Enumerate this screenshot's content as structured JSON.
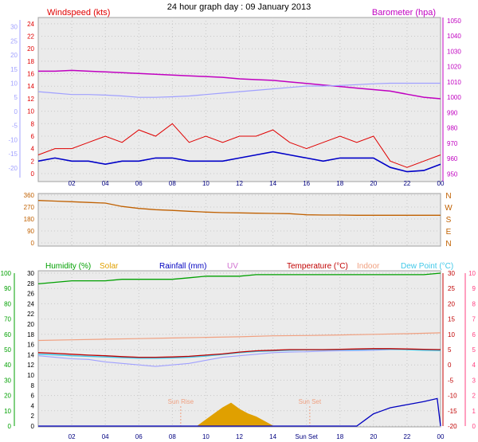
{
  "title": "24 hour graph day : 09 January 2013",
  "colors": {
    "wind": "#e00000",
    "gust_avg": "#0000c8",
    "temp_axis": "#a0a0ff",
    "baro": "#c000c0",
    "dir": "#c06000",
    "humidity": "#00a000",
    "solar": "#e0a000",
    "rain": "#0000c0",
    "uv": "#d070d0",
    "temperature": "#c00000",
    "indoor": "#f0a080",
    "dewpoint": "#40c8e8",
    "wchill": "#a0a0ff",
    "axis_pink": "#ff4080"
  },
  "chart_data": [
    {
      "type": "line",
      "x_ticks": [
        "02",
        "04",
        "06",
        "08",
        "10",
        "12",
        "14",
        "16",
        "18",
        "20",
        "22",
        "00"
      ],
      "left_label": "Windspeed (kts)",
      "right_label": "Barometer (hpa)",
      "left_ticks": [
        "24",
        "22",
        "20",
        "18",
        "16",
        "14",
        "12",
        "10",
        "8",
        "6",
        "4",
        "2",
        "0"
      ],
      "right_ticks": [
        "1050",
        "1040",
        "1030",
        "1020",
        "1010",
        "1000",
        "990",
        "980",
        "970",
        "960",
        "950"
      ],
      "outer_ticks": [
        "30",
        "25",
        "20",
        "15",
        "10",
        "5",
        "0",
        "-5",
        "-10",
        "-15",
        "-20"
      ],
      "ylim_wind": [
        0,
        25
      ],
      "ylim_baro": [
        945,
        1052
      ],
      "ylim_outer": [
        -22,
        31
      ],
      "series": [
        {
          "key": "barometer",
          "x": [
            0,
            1,
            2,
            3,
            4,
            5,
            6,
            7,
            8,
            9,
            10,
            11,
            12,
            13,
            14,
            15,
            16,
            17,
            18,
            19,
            20,
            21,
            22,
            23,
            24
          ],
          "values": [
            1017,
            1017,
            1017.5,
            1017,
            1016.5,
            1016,
            1015.5,
            1015,
            1014.5,
            1014,
            1013.5,
            1013,
            1012,
            1011.5,
            1011,
            1010,
            1009,
            1008,
            1007,
            1006,
            1005,
            1004,
            1002,
            1000,
            999
          ]
        },
        {
          "key": "outer_temp",
          "x": [
            0,
            1,
            2,
            3,
            4,
            5,
            6,
            7,
            8,
            9,
            10,
            11,
            12,
            13,
            14,
            15,
            16,
            17,
            18,
            19,
            20,
            21,
            22,
            23,
            24
          ],
          "values": [
            7,
            6.5,
            6,
            6,
            5.8,
            5.5,
            5,
            5,
            5.2,
            5.5,
            6,
            6.5,
            7,
            7.5,
            8,
            8.5,
            9,
            9,
            9.2,
            9.5,
            9.8,
            10,
            10,
            10,
            10
          ]
        },
        {
          "key": "windspeed",
          "x": [
            0,
            1,
            2,
            3,
            4,
            5,
            6,
            7,
            8,
            9,
            10,
            11,
            12,
            13,
            14,
            15,
            16,
            17,
            18,
            19,
            20,
            21,
            22,
            23,
            24
          ],
          "values": [
            3,
            4,
            4,
            5,
            6,
            5,
            7,
            6,
            8,
            5,
            6,
            5,
            6,
            6,
            7,
            5,
            4,
            5,
            6,
            5,
            6,
            2,
            1,
            2,
            3
          ]
        },
        {
          "key": "wind_avg",
          "x": [
            0,
            1,
            2,
            3,
            4,
            5,
            6,
            7,
            8,
            9,
            10,
            11,
            12,
            13,
            14,
            15,
            16,
            17,
            18,
            19,
            20,
            21,
            22,
            23,
            24
          ],
          "values": [
            2,
            2.5,
            2,
            2,
            1.5,
            2,
            2,
            2.5,
            2.5,
            2,
            2,
            2,
            2.5,
            3,
            3.5,
            3,
            2.5,
            2,
            2.5,
            2.5,
            2.5,
            1,
            0.3,
            0.5,
            1.5
          ]
        }
      ]
    },
    {
      "type": "line",
      "x_ticks": [
        "02",
        "04",
        "06",
        "08",
        "10",
        "12",
        "14",
        "16",
        "18",
        "20",
        "22",
        "00"
      ],
      "left_ticks": [
        "360",
        "270",
        "180",
        "90",
        "0"
      ],
      "right_ticks": [
        "N",
        "W",
        "S",
        "E",
        "N"
      ],
      "ylim": [
        0,
        360
      ],
      "series": [
        {
          "key": "wind_direction",
          "x": [
            0,
            1,
            2,
            3,
            4,
            5,
            6,
            7,
            8,
            9,
            10,
            11,
            12,
            13,
            14,
            15,
            16,
            17,
            18,
            19,
            20,
            21,
            22,
            23,
            24
          ],
          "values": [
            320,
            315,
            310,
            305,
            300,
            275,
            260,
            250,
            245,
            238,
            232,
            228,
            226,
            224,
            222,
            220,
            212,
            210,
            210,
            208,
            208,
            208,
            208,
            208,
            208
          ]
        }
      ]
    },
    {
      "type": "line",
      "x_ticks": [
        "02",
        "04",
        "06",
        "08",
        "10",
        "12",
        "14",
        "Sun Set",
        "18",
        "20",
        "22",
        "00"
      ],
      "legend": [
        {
          "key": "humidity",
          "label": "Humidity (%)"
        },
        {
          "key": "solar",
          "label": "Solar"
        },
        {
          "key": "rain",
          "label": "Rainfall (mm)"
        },
        {
          "key": "uv",
          "label": "UV"
        },
        {
          "key": "temperature",
          "label": "Temperature (°C)"
        },
        {
          "key": "indoor",
          "label": "Indoor"
        },
        {
          "key": "dewpoint",
          "label": "Dew Point (°C)"
        }
      ],
      "left_ticks": [
        "100",
        "90",
        "80",
        "70",
        "60",
        "50",
        "40",
        "30",
        "20",
        "10",
        "0"
      ],
      "inner_ticks": [
        "30",
        "28",
        "26",
        "24",
        "22",
        "20",
        "18",
        "16",
        "14",
        "12",
        "10",
        "8",
        "6",
        "4",
        "2",
        "0"
      ],
      "right_ticks": [
        "30",
        "25",
        "20",
        "15",
        "10",
        "5",
        "0",
        "-5",
        "-10",
        "-15",
        "-20"
      ],
      "outer_right_ticks": [
        "10",
        "9",
        "8",
        "7",
        "6",
        "5",
        "4",
        "3",
        "2",
        "1",
        "0"
      ],
      "annotations": [
        {
          "label": "Sun Rise",
          "x": 8.5
        },
        {
          "label": "Sun Set",
          "x": 16.2
        }
      ],
      "ylim_temp": [
        -20,
        30
      ],
      "ylim_hum": [
        0,
        100
      ],
      "ylim_rain": [
        0,
        10
      ],
      "series": [
        {
          "key": "humidity",
          "x": [
            0,
            1,
            2,
            3,
            4,
            5,
            6,
            7,
            8,
            9,
            10,
            11,
            12,
            13,
            14,
            15,
            16,
            17,
            18,
            19,
            20,
            21,
            22,
            23,
            24
          ],
          "values": [
            93,
            94,
            95,
            95,
            95,
            96,
            96,
            96,
            96,
            97,
            98,
            98,
            98,
            99,
            99,
            99,
            99,
            99,
            99,
            99,
            99,
            99,
            99,
            99,
            100
          ]
        },
        {
          "key": "indoor",
          "x": [
            0,
            2,
            4,
            6,
            8,
            10,
            12,
            14,
            16,
            18,
            20,
            22,
            24
          ],
          "values": [
            8,
            8.2,
            8.4,
            8.6,
            8.8,
            9,
            9.2,
            9.5,
            9.6,
            9.8,
            10,
            10.2,
            10.5
          ]
        },
        {
          "key": "temperature",
          "x": [
            0,
            1,
            2,
            3,
            4,
            5,
            6,
            7,
            8,
            9,
            10,
            11,
            12,
            13,
            14,
            15,
            16,
            17,
            18,
            19,
            20,
            21,
            22,
            23,
            24
          ],
          "values": [
            4,
            3.8,
            3.5,
            3.2,
            3,
            2.7,
            2.5,
            2.5,
            2.6,
            2.8,
            3.2,
            3.6,
            4.2,
            4.6,
            4.8,
            5,
            5,
            5,
            5.1,
            5.2,
            5.3,
            5.3,
            5.2,
            5.1,
            5
          ]
        },
        {
          "key": "dewpoint",
          "x": [
            0,
            1,
            2,
            3,
            4,
            5,
            6,
            7,
            8,
            9,
            10,
            11,
            12,
            13,
            14,
            15,
            16,
            17,
            18,
            19,
            20,
            21,
            22,
            23,
            24
          ],
          "values": [
            3.5,
            3.3,
            3,
            2.8,
            2.6,
            2.4,
            2.2,
            2.2,
            2.3,
            2.5,
            2.9,
            3.4,
            4,
            4.4,
            4.6,
            4.8,
            4.9,
            4.9,
            5,
            5,
            5.1,
            5.1,
            5,
            4.8,
            4.7
          ]
        },
        {
          "key": "wchill",
          "x": [
            0,
            1,
            2,
            3,
            4,
            5,
            6,
            7,
            8,
            9,
            10,
            11,
            12,
            13,
            14,
            15,
            16,
            17,
            18,
            19,
            20,
            21,
            22,
            23,
            24
          ],
          "values": [
            3,
            2.5,
            2,
            1.8,
            1,
            0.5,
            0,
            -0.5,
            0,
            0.5,
            1.5,
            2.5,
            3,
            3.5,
            4,
            4.2,
            4.3,
            4.5,
            4.6,
            4.7,
            4.8,
            5,
            5,
            4.9,
            4.8
          ]
        },
        {
          "key": "solar",
          "x": [
            9.5,
            10,
            10.5,
            11,
            11.5,
            12,
            12.5,
            13,
            13.5,
            14
          ],
          "values": [
            0,
            0.4,
            0.8,
            1.2,
            1.5,
            1.1,
            0.8,
            0.6,
            0.3,
            0
          ]
        },
        {
          "key": "rain",
          "x": [
            0,
            19,
            19.5,
            20,
            20.5,
            21,
            22,
            23,
            23.8,
            24
          ],
          "values": [
            0,
            0,
            0.4,
            0.8,
            1.0,
            1.2,
            1.4,
            1.6,
            1.8,
            0
          ]
        }
      ]
    }
  ]
}
